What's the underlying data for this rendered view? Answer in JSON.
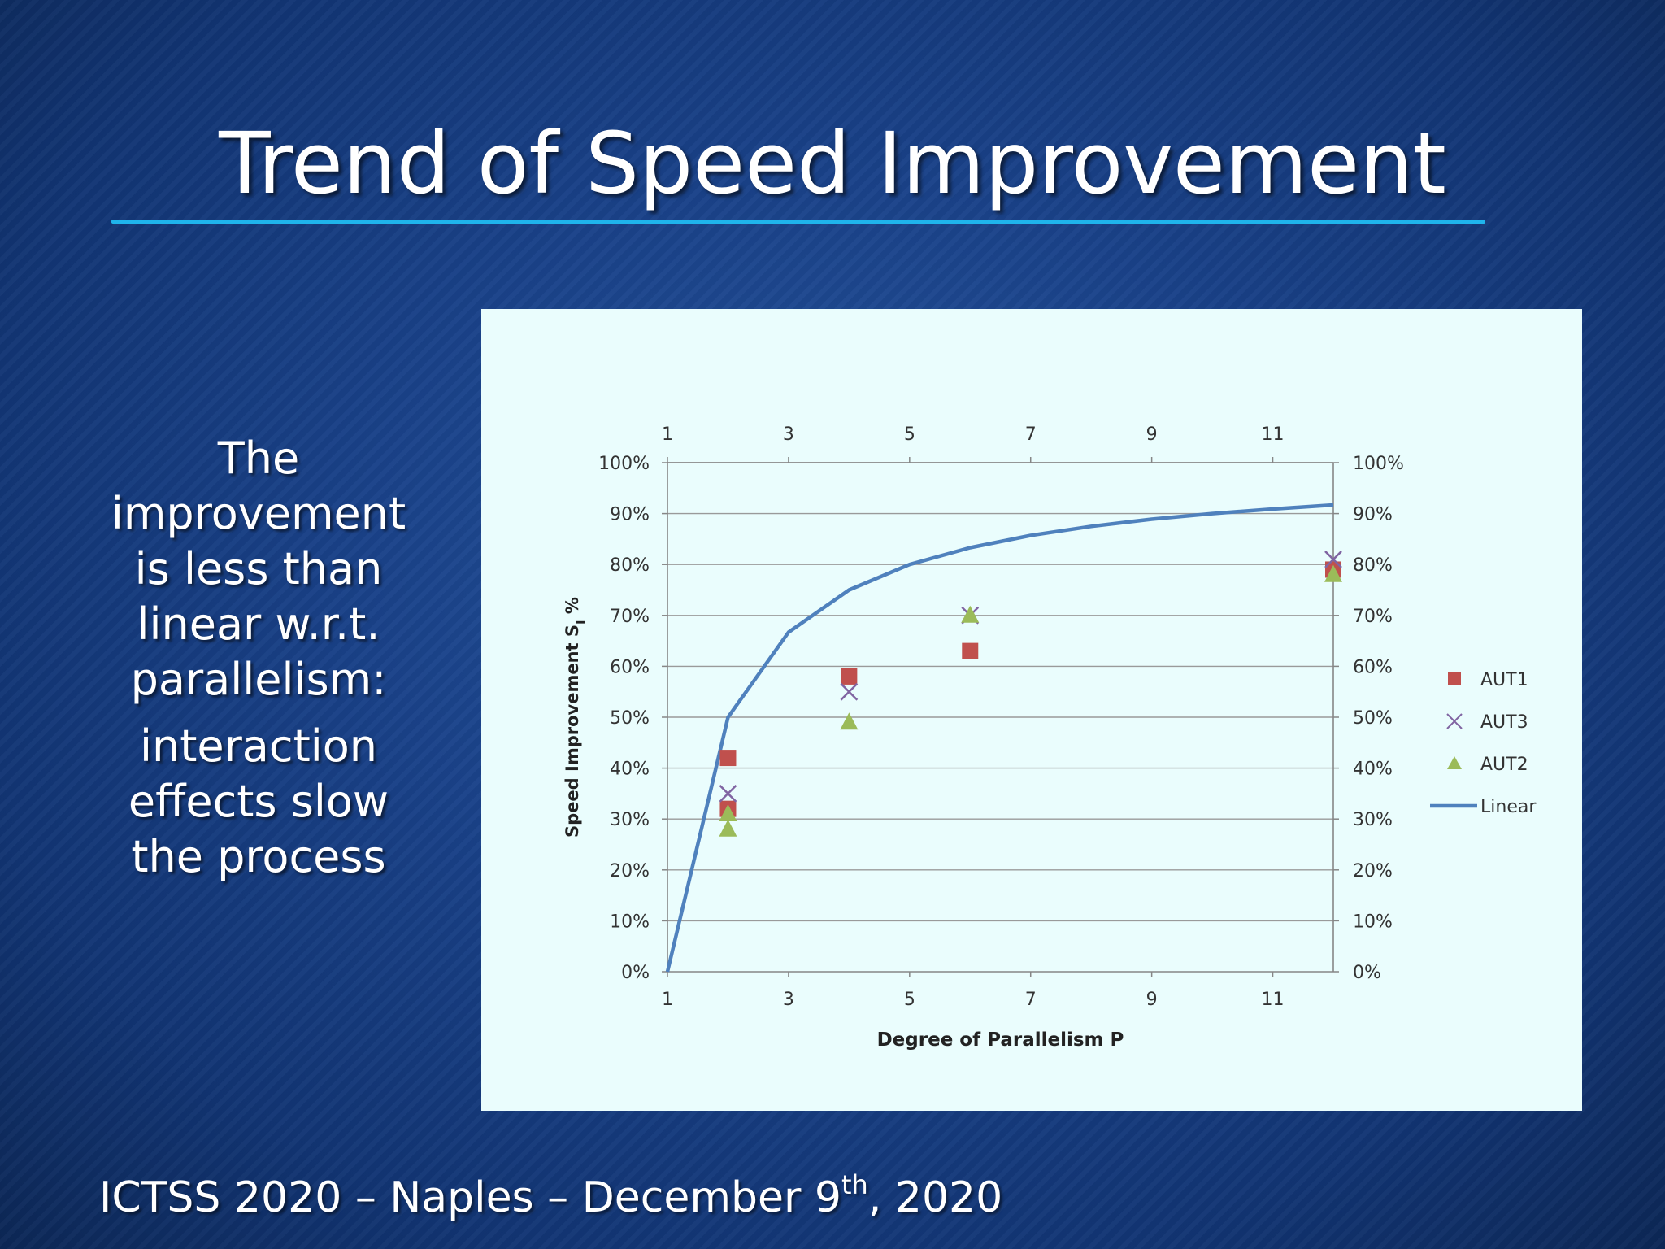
{
  "slide": {
    "title": "Trend of Speed Improvement",
    "side_text": {
      "line1": "The",
      "line2": "improvement",
      "line3": "is less than",
      "line4": "linear w.r.t.",
      "line5": "parallelism:",
      "line6": "interaction",
      "line7": "effects slow",
      "line8": "the process"
    },
    "footer": {
      "prefix": "ICTSS 2020 – Naples – December 9",
      "sup": "th",
      "suffix": ", 2020"
    }
  },
  "colors": {
    "aut1": "#c0504d",
    "aut3": "#8064a2",
    "aut2": "#9bbb59",
    "linear": "#4f81bd",
    "axis": "#868686",
    "grid": "#9a9a9a",
    "panel": "#eafdfd"
  },
  "chart_data": {
    "type": "scatter",
    "title": "",
    "xlabel": "Degree of Parallelism P",
    "ylabel": "Speed Improvement S",
    "ylabel_sub": "I",
    "ylabel_suffix": " %",
    "xlim": [
      1,
      12
    ],
    "ylim": [
      0,
      100
    ],
    "x_ticks": [
      1,
      3,
      5,
      7,
      9,
      11
    ],
    "x_tick_labels": [
      "1",
      "3",
      "5",
      "7",
      "9",
      "11"
    ],
    "y_ticks": [
      0,
      10,
      20,
      30,
      40,
      50,
      60,
      70,
      80,
      90,
      100
    ],
    "y_tick_labels": [
      "0%",
      "10%",
      "20%",
      "30%",
      "40%",
      "50%",
      "60%",
      "70%",
      "80%",
      "90%",
      "100%"
    ],
    "grid": true,
    "legend_position": "right",
    "series": [
      {
        "name": "AUT1",
        "marker": "square",
        "points": [
          [
            2,
            42
          ],
          [
            2,
            32
          ],
          [
            4,
            58
          ],
          [
            6,
            63
          ],
          [
            12,
            79
          ]
        ]
      },
      {
        "name": "AUT3",
        "marker": "x",
        "points": [
          [
            2,
            35
          ],
          [
            4,
            55
          ],
          [
            6,
            70
          ],
          [
            12,
            81
          ]
        ]
      },
      {
        "name": "AUT2",
        "marker": "triangle",
        "points": [
          [
            2,
            31
          ],
          [
            2,
            28
          ],
          [
            4,
            49
          ],
          [
            6,
            70
          ],
          [
            12,
            78
          ]
        ]
      },
      {
        "name": "Linear",
        "marker": "line",
        "points": [
          [
            1,
            0
          ],
          [
            2,
            50
          ],
          [
            3,
            66.7
          ],
          [
            4,
            75
          ],
          [
            5,
            80
          ],
          [
            6,
            83.3
          ],
          [
            7,
            85.7
          ],
          [
            8,
            87.5
          ],
          [
            9,
            88.9
          ],
          [
            10,
            90
          ],
          [
            11,
            90.9
          ],
          [
            12,
            91.7
          ]
        ]
      }
    ]
  }
}
